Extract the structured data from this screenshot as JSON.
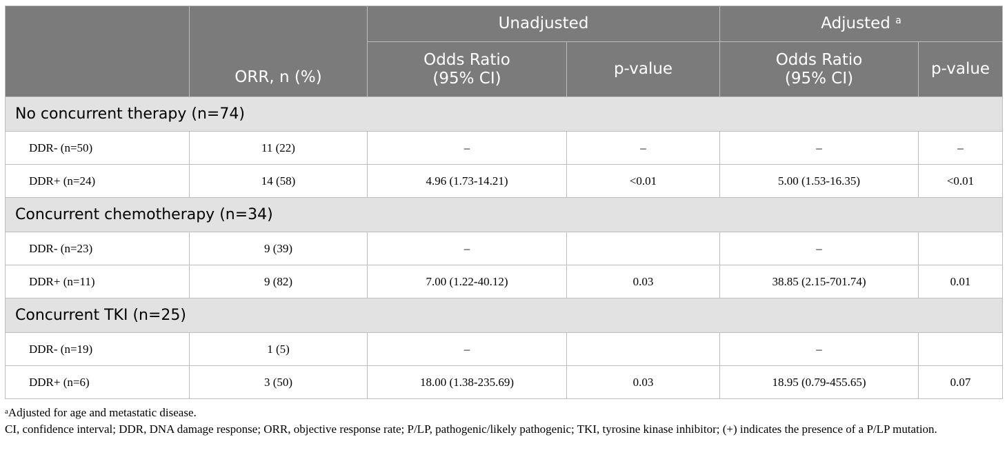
{
  "header": {
    "col_orr": "ORR, n (%)",
    "group_unadjusted": "Unadjusted",
    "group_adjusted": "Adjusted",
    "adjusted_marker": "a",
    "odds_ratio_line1": "Odds Ratio",
    "odds_ratio_line2": "(95% CI)",
    "p_value": "p-value"
  },
  "groups": [
    {
      "title": "No concurrent therapy (n=74)",
      "rows": [
        {
          "label": "DDR- (n=50)",
          "orr": "11 (22)",
          "unadj_or": "–",
          "unadj_p": "–",
          "adj_or": "–",
          "adj_p": "–"
        },
        {
          "label": "DDR+ (n=24)",
          "orr": "14 (58)",
          "unadj_or": "4.96 (1.73-14.21)",
          "unadj_p": "<0.01",
          "adj_or": "5.00 (1.53-16.35)",
          "adj_p": "<0.01"
        }
      ]
    },
    {
      "title": "Concurrent chemotherapy (n=34)",
      "rows": [
        {
          "label": "DDR- (n=23)",
          "orr": "9 (39)",
          "unadj_or": "–",
          "unadj_p": "",
          "adj_or": "–",
          "adj_p": ""
        },
        {
          "label": "DDR+ (n=11)",
          "orr": "9 (82)",
          "unadj_or": "7.00 (1.22-40.12)",
          "unadj_p": "0.03",
          "adj_or": "38.85 (2.15-701.74)",
          "adj_p": "0.01"
        }
      ]
    },
    {
      "title": "Concurrent TKI (n=25)",
      "rows": [
        {
          "label": "DDR- (n=19)",
          "orr": "1 (5)",
          "unadj_or": "–",
          "unadj_p": "",
          "adj_or": "–",
          "adj_p": ""
        },
        {
          "label": "DDR+ (n=6)",
          "orr": "3 (50)",
          "unadj_or": "18.00 (1.38-235.69)",
          "unadj_p": "0.03",
          "adj_or": "18.95 (0.79-455.65)",
          "adj_p": "0.07"
        }
      ]
    }
  ],
  "footnotes": {
    "note_a_marker": "a",
    "note_a_text": "Adjusted for age and metastatic disease.",
    "abbreviations": "CI, confidence interval; DDR, DNA damage response; ORR, objective response rate; P/LP, pathogenic/likely pathogenic; TKI, tyrosine kinase inhibitor; (+) indicates the presence of a P/LP mutation."
  }
}
